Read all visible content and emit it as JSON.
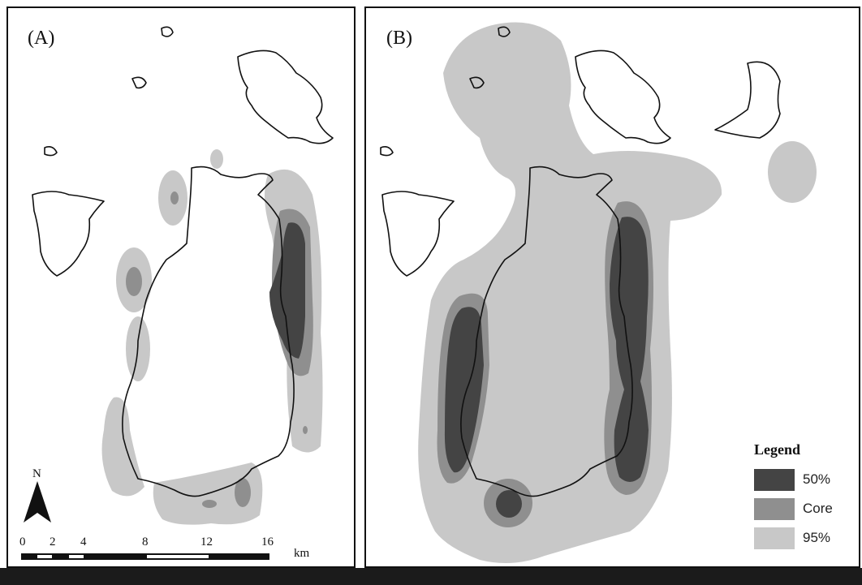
{
  "panels": {
    "a": {
      "label": "(A)"
    },
    "b": {
      "label": "(B)"
    }
  },
  "north_arrow": {
    "label": "N"
  },
  "scale_bar": {
    "ticks": [
      "0",
      "2",
      "4",
      "8",
      "12",
      "16"
    ],
    "unit": "km"
  },
  "legend": {
    "title": "Legend",
    "items": [
      {
        "label": "50%",
        "color": "#444444"
      },
      {
        "label": "Core",
        "color": "#8f8f8f"
      },
      {
        "label": "95%",
        "color": "#c8c8c8"
      }
    ]
  },
  "colors": {
    "zone_95": "#c8c8c8",
    "zone_core": "#8f8f8f",
    "zone_50": "#444444",
    "coastline": "#111111"
  }
}
